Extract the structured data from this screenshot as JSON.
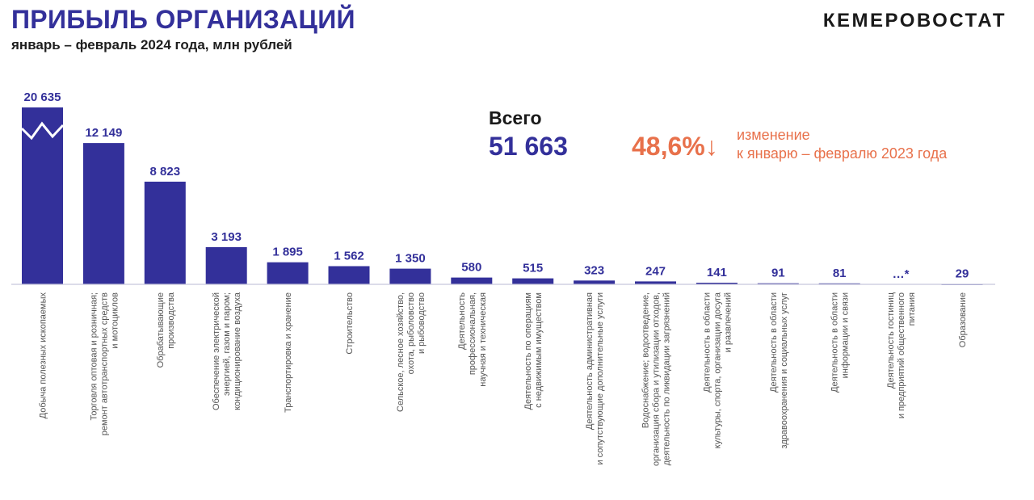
{
  "header": {
    "title": "ПРИБЫЛЬ ОРГАНИЗАЦИЙ",
    "subtitle": "январь – февраль 2024 года, млн рублей",
    "brand": "КЕМЕРОВОСТАТ"
  },
  "summary": {
    "total_label": "Всего",
    "total_value": "51 663",
    "change_value": "48,6%↓",
    "change_note_line1": "изменение",
    "change_note_line2": "к январю – февралю 2023 года"
  },
  "colors": {
    "bar": "#33309a",
    "accent": "#e8714b"
  },
  "chart_data": {
    "type": "bar",
    "axis_break": true,
    "categories": [
      [
        "Добыча полезных ископаемых"
      ],
      [
        "Торговля оптовая и розничная;",
        "ремонт автотранспортных средств",
        "и мотоциклов"
      ],
      [
        "Обрабатывающие",
        "производства"
      ],
      [
        "Обеспечение электрической",
        "энергией, газом и паром;",
        "кондиционирование воздуха"
      ],
      [
        "Транспортировка и хранение"
      ],
      [
        "Строительство"
      ],
      [
        "Сельское, лесное хозяйство,",
        "охота, рыболовство",
        "и рыбоводство"
      ],
      [
        "Деятельность",
        "профессиональная,",
        "научная и техническая"
      ],
      [
        "Деятельность по операциям",
        "с недвижимым имуществом"
      ],
      [
        "Деятельность административная",
        "и сопутствующие дополнительные услуги"
      ],
      [
        "Водоснабжение; водоотведение,",
        "организация сбора и утилизации отходов,",
        "деятельность по ликвидации загрязнений"
      ],
      [
        "Деятельность в области",
        "культуры, спорта, организации досуга",
        "и развлечений"
      ],
      [
        "Деятельность в области",
        "здравоохранения и социальных услуг"
      ],
      [
        "Деятельность в области",
        "информации и связи"
      ],
      [
        "Деятельность  гостиниц",
        "и предприятий общественного",
        "питания"
      ],
      [
        "Образование"
      ]
    ],
    "values": [
      20635,
      12149,
      8823,
      3193,
      1895,
      1562,
      1350,
      580,
      515,
      323,
      247,
      141,
      91,
      81,
      null,
      29
    ],
    "value_labels": [
      "20 635",
      "12 149",
      "8 823",
      "3 193",
      "1 895",
      "1 562",
      "1 350",
      "580",
      "515",
      "323",
      "247",
      "141",
      "91",
      "81",
      "…*",
      "29"
    ]
  }
}
